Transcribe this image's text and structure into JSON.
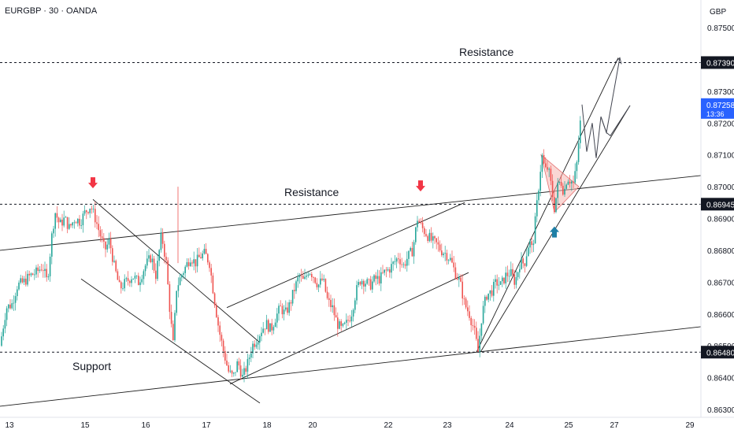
{
  "header": {
    "symbol": "EURGBP · 30 · OANDA",
    "currency": "GBP"
  },
  "colors": {
    "bull": "#26a69a",
    "bear": "#ef5350",
    "wick_bull": "#26a69a",
    "wick_bear": "#ef5350",
    "trend_line": "#1f1f1f",
    "level_line": "#131722",
    "axis_text": "#131722",
    "current_badge": "#2962ff",
    "arrow_down": "#f23645",
    "arrow_up": "#1e7fa6",
    "triangle_fill": "#f5b7b1"
  },
  "chart_data": {
    "type": "candlestick",
    "title": "EURGBP · 30 · OANDA",
    "ylabel": "GBP",
    "ylim": [
      0.8626,
      0.8756
    ],
    "y_ticks": [
      "0.87500",
      "0.87300",
      "0.87200",
      "0.87100",
      "0.87000",
      "0.86900",
      "0.86800",
      "0.86700",
      "0.86600",
      "0.86500",
      "0.86400",
      "0.86300"
    ],
    "x_ticks": [
      "13",
      "15",
      "16",
      "17",
      "18",
      "20",
      "22",
      "23",
      "24",
      "25",
      "27",
      "29"
    ],
    "price_labels": {
      "resistance_top": "0.87390",
      "current_price": "0.87258",
      "countdown": "13:36",
      "resistance_mid": "0.86945",
      "support": "0.86480"
    },
    "annotations": {
      "resistance_top_label": "Resistance",
      "resistance_mid_label": "Resistance",
      "support_label": "Support"
    },
    "horizontal_levels": [
      0.8739,
      0.86945,
      0.8648
    ],
    "price_path": [
      [
        0,
        0.865
      ],
      [
        8,
        0.8662
      ],
      [
        15,
        0.8663
      ],
      [
        22,
        0.8669
      ],
      [
        30,
        0.867
      ],
      [
        38,
        0.8672
      ],
      [
        46,
        0.8673
      ],
      [
        54,
        0.8675
      ],
      [
        60,
        0.867
      ],
      [
        66,
        0.8685
      ],
      [
        70,
        0.8692
      ],
      [
        76,
        0.8688
      ],
      [
        82,
        0.869
      ],
      [
        88,
        0.8687
      ],
      [
        95,
        0.869
      ],
      [
        102,
        0.8689
      ],
      [
        108,
        0.8692
      ],
      [
        115,
        0.8694
      ],
      [
        121,
        0.869
      ],
      [
        127,
        0.8685
      ],
      [
        133,
        0.868
      ],
      [
        139,
        0.8683
      ],
      [
        145,
        0.8675
      ],
      [
        152,
        0.8668
      ],
      [
        160,
        0.867
      ],
      [
        168,
        0.8672
      ],
      [
        176,
        0.867
      ],
      [
        184,
        0.8675
      ],
      [
        192,
        0.8678
      ],
      [
        198,
        0.8672
      ],
      [
        205,
        0.8685
      ],
      [
        211,
        0.8676
      ],
      [
        216,
        0.866
      ],
      [
        220,
        0.865
      ],
      [
        224,
        0.8668
      ],
      [
        230,
        0.8672
      ],
      [
        236,
        0.8675
      ],
      [
        242,
        0.8678
      ],
      [
        248,
        0.8676
      ],
      [
        254,
        0.8678
      ],
      [
        260,
        0.8679
      ],
      [
        266,
        0.8676
      ],
      [
        272,
        0.8665
      ],
      [
        278,
        0.8655
      ],
      [
        284,
        0.8648
      ],
      [
        290,
        0.8642
      ],
      [
        296,
        0.864
      ],
      [
        302,
        0.8645
      ],
      [
        308,
        0.864
      ],
      [
        314,
        0.8644
      ],
      [
        320,
        0.865
      ],
      [
        326,
        0.8652
      ],
      [
        332,
        0.8655
      ],
      [
        338,
        0.8657
      ],
      [
        344,
        0.8655
      ],
      [
        350,
        0.8659
      ],
      [
        356,
        0.8662
      ],
      [
        362,
        0.866
      ],
      [
        368,
        0.8663
      ],
      [
        374,
        0.8668
      ],
      [
        380,
        0.8672
      ],
      [
        386,
        0.867
      ],
      [
        392,
        0.8674
      ],
      [
        398,
        0.8672
      ],
      [
        404,
        0.8669
      ],
      [
        410,
        0.8671
      ],
      [
        416,
        0.8664
      ],
      [
        422,
        0.8662
      ],
      [
        428,
        0.8657
      ],
      [
        434,
        0.8655
      ],
      [
        440,
        0.8657
      ],
      [
        446,
        0.866
      ],
      [
        452,
        0.8667
      ],
      [
        458,
        0.8671
      ],
      [
        464,
        0.867
      ],
      [
        470,
        0.8669
      ],
      [
        476,
        0.8671
      ],
      [
        482,
        0.8671
      ],
      [
        488,
        0.8673
      ],
      [
        494,
        0.8674
      ],
      [
        500,
        0.8676
      ],
      [
        506,
        0.8678
      ],
      [
        512,
        0.8675
      ],
      [
        518,
        0.8678
      ],
      [
        524,
        0.868
      ],
      [
        530,
        0.869
      ],
      [
        536,
        0.8687
      ],
      [
        542,
        0.8685
      ],
      [
        548,
        0.8683
      ],
      [
        554,
        0.8682
      ],
      [
        560,
        0.868
      ],
      [
        566,
        0.8679
      ],
      [
        572,
        0.8677
      ],
      [
        578,
        0.8673
      ],
      [
        584,
        0.867
      ],
      [
        590,
        0.8663
      ],
      [
        596,
        0.866
      ],
      [
        602,
        0.8655
      ],
      [
        607,
        0.8648
      ],
      [
        612,
        0.866
      ],
      [
        618,
        0.8666
      ],
      [
        624,
        0.8667
      ],
      [
        630,
        0.867
      ],
      [
        636,
        0.8669
      ],
      [
        642,
        0.8672
      ],
      [
        648,
        0.8673
      ],
      [
        654,
        0.867
      ],
      [
        660,
        0.8676
      ],
      [
        666,
        0.8676
      ],
      [
        672,
        0.8683
      ],
      [
        676,
        0.868
      ],
      [
        680,
        0.869
      ],
      [
        684,
        0.87
      ],
      [
        688,
        0.871
      ],
      [
        692,
        0.8705
      ],
      [
        696,
        0.8706
      ],
      [
        700,
        0.87
      ],
      [
        704,
        0.8693
      ],
      [
        708,
        0.87
      ],
      [
        712,
        0.8702
      ],
      [
        716,
        0.8698
      ],
      [
        720,
        0.8703
      ],
      [
        724,
        0.8702
      ],
      [
        728,
        0.8701
      ],
      [
        732,
        0.8706
      ],
      [
        736,
        0.8718
      ],
      [
        739,
        0.87258
      ]
    ],
    "projection_path": [
      [
        739,
        0.87258
      ],
      [
        745,
        0.8711
      ],
      [
        752,
        0.872
      ],
      [
        757,
        0.8709
      ],
      [
        763,
        0.8722
      ],
      [
        770,
        0.8717
      ],
      [
        787,
        0.87405
      ]
    ],
    "projection_path_alt": [
      [
        763,
        0.8722
      ],
      [
        770,
        0.8717
      ],
      [
        775,
        0.8716
      ],
      [
        800,
        0.87255
      ]
    ],
    "trend_lines": [
      {
        "name": "upper-trend",
        "from": [
          0,
          0.868
        ],
        "to": [
          890,
          0.87035
        ]
      },
      {
        "name": "lower-trend",
        "from": [
          0,
          0.8631
        ],
        "to": [
          890,
          0.8656
        ]
      },
      {
        "name": "falling-channel-top",
        "from": [
          118,
          0.8696
        ],
        "to": [
          330,
          0.8651
        ]
      },
      {
        "name": "falling-channel-bottom",
        "from": [
          103,
          0.8671
        ],
        "to": [
          330,
          0.8632
        ]
      },
      {
        "name": "rising-channel-top",
        "from": [
          288,
          0.8662
        ],
        "to": [
          590,
          0.8695
        ]
      },
      {
        "name": "rising-channel-bottom",
        "from": [
          292,
          0.8638
        ],
        "to": [
          595,
          0.8673
        ]
      },
      {
        "name": "breakout-channel-top",
        "from": [
          605,
          0.8648
        ],
        "to": [
          785,
          0.87405
        ]
      },
      {
        "name": "breakout-channel-bottom",
        "from": [
          610,
          0.8648
        ],
        "to": [
          800,
          0.87255
        ]
      }
    ],
    "triangle": [
      [
        687,
        0.871
      ],
      [
        735,
        0.87
      ],
      [
        704,
        0.8692
      ]
    ],
    "markers": [
      {
        "type": "arrow-down",
        "x": 118,
        "price": 0.87
      },
      {
        "type": "arrow-down",
        "x": 534,
        "price": 0.8699
      },
      {
        "type": "arrow-up",
        "x": 704,
        "price": 0.8687
      }
    ]
  }
}
